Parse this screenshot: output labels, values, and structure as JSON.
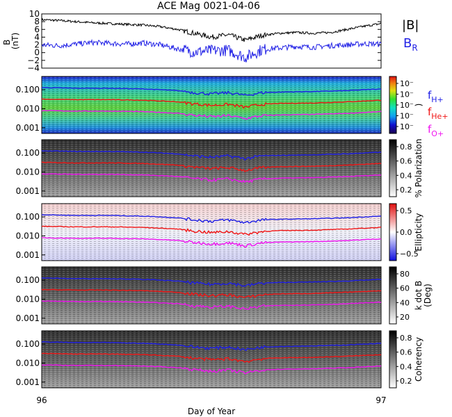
{
  "figure": {
    "title": "ACE Mag 0021-04-06",
    "xlabel": "Day of Year",
    "x_ticks": [
      "96",
      "97"
    ]
  },
  "legend": {
    "b_total": "|B|",
    "b_r": "B",
    "b_r_sub": "R",
    "f_h": "f",
    "f_h_sub": "H+",
    "f_he": "f",
    "f_he_sub": "He+",
    "f_o": "f",
    "f_o_sub": "O+"
  },
  "colors": {
    "b_total": "#000000",
    "b_r": "#2323e6",
    "f_h": "#1e1ee6",
    "f_he": "#f01414",
    "f_o": "#f014f0"
  },
  "chart_data": [
    {
      "type": "line",
      "panel": "magnetic-field",
      "ylabel": "B\n(nT)",
      "ylim": [
        -4,
        10
      ],
      "y_ticks": [
        "10",
        "8",
        "6",
        "4",
        "2",
        "0",
        "−2",
        "−4"
      ],
      "xlim": [
        96,
        97
      ],
      "series": [
        {
          "name": "|B|",
          "x": [
            96.0,
            96.05,
            96.1,
            96.15,
            96.2,
            96.25,
            96.3,
            96.35,
            96.4,
            96.45,
            96.5,
            96.55,
            96.6,
            96.65,
            96.7,
            96.75,
            96.8,
            96.85,
            96.9,
            96.95,
            97.0
          ],
          "values": [
            8.5,
            8.3,
            8.0,
            7.7,
            7.5,
            7.3,
            7.1,
            6.7,
            6.0,
            5.0,
            4.0,
            4.6,
            3.2,
            4.5,
            5.0,
            5.2,
            5.0,
            5.2,
            6.0,
            6.8,
            7.5
          ]
        },
        {
          "name": "B_R",
          "x": [
            96.0,
            96.05,
            96.1,
            96.15,
            96.2,
            96.25,
            96.3,
            96.35,
            96.4,
            96.45,
            96.5,
            96.55,
            96.6,
            96.65,
            96.7,
            96.75,
            96.8,
            96.85,
            96.9,
            96.95,
            97.0
          ],
          "values": [
            2.0,
            1.8,
            2.2,
            2.6,
            2.4,
            2.2,
            2.5,
            2.0,
            1.0,
            0.2,
            0.5,
            0.6,
            -1.2,
            0.8,
            1.2,
            1.6,
            1.4,
            1.8,
            2.0,
            2.3,
            2.2
          ]
        }
      ]
    },
    {
      "type": "heatmap",
      "panel": "power",
      "colorscale": "rainbow",
      "ylim": [
        0.0005,
        0.5
      ],
      "yscale": "log",
      "y_ticks": [
        "0.100",
        "0.010",
        "0.001"
      ],
      "colorbar_ticks": [
        "10⁻",
        "10⁻",
        "10⁻",
        "10⁻",
        "10⁻"
      ],
      "colorbar_label": ")"
    },
    {
      "type": "heatmap",
      "panel": "polarization",
      "colorscale": "gray",
      "ylim": [
        0.0005,
        0.5
      ],
      "yscale": "log",
      "y_ticks": [
        "0.100",
        "0.010",
        "0.001"
      ],
      "colorbar_ticks": [
        "0.8",
        "0.6",
        "0.4",
        "0.2"
      ],
      "colorbar_label": "% Polarization"
    },
    {
      "type": "heatmap",
      "panel": "ellipticity",
      "colorscale": "red-white-blue",
      "ylim": [
        0.0005,
        0.5
      ],
      "yscale": "log",
      "y_ticks": [
        "0.100",
        "0.010",
        "0.001"
      ],
      "colorbar_ticks": [
        "0.5",
        "0.0",
        "−0.5"
      ],
      "colorbar_label": "Ellipticity"
    },
    {
      "type": "heatmap",
      "panel": "k-dot-b",
      "colorscale": "gray",
      "ylim": [
        0.0005,
        0.5
      ],
      "yscale": "log",
      "y_ticks": [
        "0.100",
        "0.010",
        "0.001"
      ],
      "colorbar_ticks": [
        "80",
        "60",
        "40",
        "20"
      ],
      "colorbar_label": "k dot B",
      "colorbar_label2": "(Deg)"
    },
    {
      "type": "heatmap",
      "panel": "coherency",
      "colorscale": "gray",
      "ylim": [
        0.0005,
        0.5
      ],
      "yscale": "log",
      "y_ticks": [
        "0.100",
        "0.010",
        "0.001"
      ],
      "colorbar_ticks": [
        "0.8",
        "0.6",
        "0.4",
        "0.2"
      ],
      "colorbar_label": "Coherency"
    }
  ],
  "gyrofrequencies": {
    "x": [
      96.0,
      96.1,
      96.2,
      96.3,
      96.4,
      96.45,
      96.5,
      96.55,
      96.6,
      96.65,
      96.7,
      96.8,
      96.9,
      97.0
    ],
    "f_h": [
      0.13,
      0.12,
      0.12,
      0.11,
      0.09,
      0.07,
      0.06,
      0.07,
      0.05,
      0.07,
      0.075,
      0.08,
      0.09,
      0.11
    ],
    "f_he": [
      0.032,
      0.03,
      0.03,
      0.028,
      0.023,
      0.018,
      0.015,
      0.017,
      0.012,
      0.017,
      0.019,
      0.02,
      0.023,
      0.028
    ],
    "f_o": [
      0.008,
      0.0075,
      0.0075,
      0.007,
      0.0058,
      0.0045,
      0.0038,
      0.0043,
      0.003,
      0.0043,
      0.0047,
      0.005,
      0.0057,
      0.007
    ]
  }
}
